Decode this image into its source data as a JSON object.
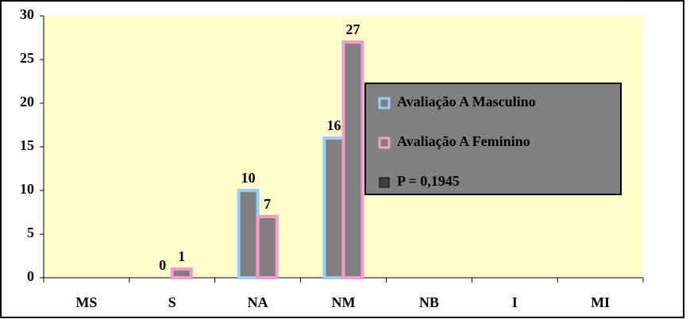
{
  "chart_data": {
    "type": "bar",
    "categories": [
      "MS",
      "S",
      "NA",
      "NM",
      "NB",
      "I",
      "MI"
    ],
    "series": [
      {
        "name": "Avaliação A Masculino",
        "color": "#99ccff",
        "values": [
          null,
          0,
          10,
          16,
          null,
          null,
          null
        ]
      },
      {
        "name": "Avaliação A Feminino",
        "color": "#ff99cc",
        "values": [
          null,
          1,
          7,
          27,
          null,
          null,
          null
        ]
      }
    ],
    "annotation": "P = 0,1945",
    "ylim": [
      0,
      30
    ],
    "yticks": [
      0,
      5,
      10,
      15,
      20,
      25,
      30
    ]
  }
}
